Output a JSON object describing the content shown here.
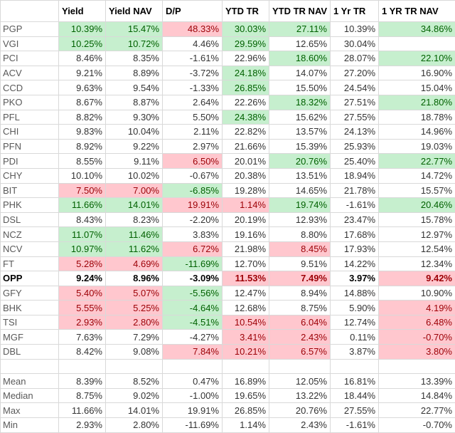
{
  "table": {
    "columns": [
      "Yield",
      "Yield NAV",
      "D/P",
      "YTD TR",
      "YTD TR NAV",
      "1 Yr TR",
      "1 YR TR NAV"
    ],
    "rows": [
      {
        "ticker": "PGP",
        "cells": [
          "10.39%",
          "15.47%",
          "48.33%",
          "30.03%",
          "27.11%",
          "10.39%",
          "34.86%"
        ],
        "fills": [
          "#c6efce",
          "#c6efce",
          "#ffc7ce",
          "#c6efce",
          "#c6efce",
          null,
          "#c6efce"
        ]
      },
      {
        "ticker": "VGI",
        "cells": [
          "10.25%",
          "10.72%",
          "4.46%",
          "29.59%",
          "12.65%",
          "30.04%",
          null
        ],
        "fills": [
          "#c6efce",
          "#c6efce",
          null,
          "#c6efce",
          null,
          null,
          null
        ]
      },
      {
        "ticker": "PCI",
        "cells": [
          "8.46%",
          "8.35%",
          "-1.61%",
          "22.96%",
          "18.60%",
          "28.07%",
          "22.10%"
        ],
        "fills": [
          null,
          null,
          null,
          null,
          "#c6efce",
          null,
          "#c6efce"
        ]
      },
      {
        "ticker": "ACV",
        "cells": [
          "9.21%",
          "8.89%",
          "-3.72%",
          "24.18%",
          "14.07%",
          "27.20%",
          "16.90%"
        ],
        "fills": [
          null,
          null,
          null,
          "#c6efce",
          null,
          null,
          null
        ]
      },
      {
        "ticker": "CCD",
        "cells": [
          "9.63%",
          "9.54%",
          "-1.33%",
          "26.85%",
          "15.50%",
          "24.54%",
          "15.04%"
        ],
        "fills": [
          null,
          null,
          null,
          "#c6efce",
          null,
          null,
          null
        ]
      },
      {
        "ticker": "PKO",
        "cells": [
          "8.67%",
          "8.87%",
          "2.64%",
          "22.26%",
          "18.32%",
          "27.51%",
          "21.80%"
        ],
        "fills": [
          null,
          null,
          null,
          null,
          "#c6efce",
          null,
          "#c6efce"
        ]
      },
      {
        "ticker": "PFL",
        "cells": [
          "8.82%",
          "9.30%",
          "5.50%",
          "24.38%",
          "15.62%",
          "27.55%",
          "18.78%"
        ],
        "fills": [
          null,
          null,
          null,
          "#c6efce",
          null,
          null,
          null
        ]
      },
      {
        "ticker": "CHI",
        "cells": [
          "9.83%",
          "10.04%",
          "2.11%",
          "22.82%",
          "13.57%",
          "24.13%",
          "14.96%"
        ],
        "fills": [
          null,
          null,
          null,
          null,
          null,
          null,
          null
        ]
      },
      {
        "ticker": "PFN",
        "cells": [
          "8.92%",
          "9.22%",
          "2.97%",
          "21.66%",
          "15.39%",
          "25.93%",
          "19.03%"
        ],
        "fills": [
          null,
          null,
          null,
          null,
          null,
          null,
          null
        ]
      },
      {
        "ticker": "PDI",
        "cells": [
          "8.55%",
          "9.11%",
          "6.50%",
          "20.01%",
          "20.76%",
          "25.40%",
          "22.77%"
        ],
        "fills": [
          null,
          null,
          "#ffc7ce",
          null,
          "#c6efce",
          null,
          "#c6efce"
        ]
      },
      {
        "ticker": "CHY",
        "cells": [
          "10.10%",
          "10.02%",
          "-0.67%",
          "20.38%",
          "13.51%",
          "18.94%",
          "14.72%"
        ],
        "fills": [
          null,
          null,
          null,
          null,
          null,
          null,
          null
        ]
      },
      {
        "ticker": "BIT",
        "cells": [
          "7.50%",
          "7.00%",
          "-6.85%",
          "19.28%",
          "14.65%",
          "21.78%",
          "15.57%"
        ],
        "fills": [
          "#ffc7ce",
          "#ffc7ce",
          "#c6efce",
          null,
          null,
          null,
          null
        ]
      },
      {
        "ticker": "PHK",
        "cells": [
          "11.66%",
          "14.01%",
          "19.91%",
          "1.14%",
          "19.74%",
          "-1.61%",
          "20.46%"
        ],
        "fills": [
          "#c6efce",
          "#c6efce",
          "#ffc7ce",
          "#ffc7ce",
          "#c6efce",
          null,
          "#c6efce"
        ]
      },
      {
        "ticker": "DSL",
        "cells": [
          "8.43%",
          "8.23%",
          "-2.20%",
          "20.19%",
          "12.93%",
          "23.47%",
          "15.78%"
        ],
        "fills": [
          null,
          null,
          null,
          null,
          null,
          null,
          null
        ]
      },
      {
        "ticker": "NCZ",
        "cells": [
          "11.07%",
          "11.46%",
          "3.83%",
          "19.16%",
          "8.80%",
          "17.68%",
          "12.97%"
        ],
        "fills": [
          "#c6efce",
          "#c6efce",
          null,
          null,
          null,
          null,
          null
        ]
      },
      {
        "ticker": "NCV",
        "cells": [
          "10.97%",
          "11.62%",
          "6.72%",
          "21.98%",
          "8.45%",
          "17.93%",
          "12.54%"
        ],
        "fills": [
          "#c6efce",
          "#c6efce",
          "#ffc7ce",
          null,
          "#ffc7ce",
          null,
          null
        ]
      },
      {
        "ticker": "FT",
        "cells": [
          "5.28%",
          "4.69%",
          "-11.69%",
          "12.70%",
          "9.51%",
          "14.22%",
          "12.34%"
        ],
        "fills": [
          "#ffc7ce",
          "#ffc7ce",
          "#c6efce",
          null,
          null,
          null,
          null
        ]
      },
      {
        "ticker": "OPP",
        "bold": true,
        "cells": [
          "9.24%",
          "8.96%",
          "-3.09%",
          "11.53%",
          "7.49%",
          "3.97%",
          "9.42%"
        ],
        "fills": [
          null,
          null,
          null,
          "#ffc7ce",
          "#ffc7ce",
          null,
          "#ffc7ce"
        ]
      },
      {
        "ticker": "GFY",
        "cells": [
          "5.40%",
          "5.07%",
          "-5.56%",
          "12.47%",
          "8.94%",
          "14.88%",
          "10.90%"
        ],
        "fills": [
          "#ffc7ce",
          "#ffc7ce",
          "#c6efce",
          null,
          null,
          null,
          null
        ]
      },
      {
        "ticker": "BHK",
        "cells": [
          "5.55%",
          "5.25%",
          "-4.64%",
          "12.68%",
          "8.75%",
          "5.90%",
          "4.19%"
        ],
        "fills": [
          "#ffc7ce",
          "#ffc7ce",
          "#c6efce",
          null,
          null,
          null,
          "#ffc7ce"
        ]
      },
      {
        "ticker": "TSI",
        "cells": [
          "2.93%",
          "2.80%",
          "-4.51%",
          "10.54%",
          "6.04%",
          "12.74%",
          "6.48%"
        ],
        "fills": [
          "#ffc7ce",
          "#ffc7ce",
          "#c6efce",
          "#ffc7ce",
          "#ffc7ce",
          null,
          "#ffc7ce"
        ]
      },
      {
        "ticker": "MGF",
        "cells": [
          "7.63%",
          "7.29%",
          "-4.27%",
          "3.41%",
          "2.43%",
          "0.11%",
          "-0.70%"
        ],
        "fills": [
          null,
          null,
          null,
          "#ffc7ce",
          "#ffc7ce",
          null,
          "#ffc7ce"
        ]
      },
      {
        "ticker": "DBL",
        "cells": [
          "8.42%",
          "9.08%",
          "7.84%",
          "10.21%",
          "6.57%",
          "3.87%",
          "3.80%"
        ],
        "fills": [
          null,
          null,
          "#ffc7ce",
          "#ffc7ce",
          "#ffc7ce",
          null,
          "#ffc7ce"
        ]
      }
    ],
    "summary": [
      {
        "label": "Mean",
        "cells": [
          "8.39%",
          "8.52%",
          "0.47%",
          "16.89%",
          "12.05%",
          "16.81%",
          "13.39%"
        ]
      },
      {
        "label": "Median",
        "cells": [
          "8.75%",
          "9.02%",
          "-1.00%",
          "19.65%",
          "13.22%",
          "18.44%",
          "14.84%"
        ]
      },
      {
        "label": "Max",
        "cells": [
          "11.66%",
          "14.01%",
          "19.91%",
          "26.85%",
          "20.76%",
          "27.55%",
          "22.77%"
        ]
      },
      {
        "label": "Min",
        "cells": [
          "2.93%",
          "2.80%",
          "-11.69%",
          "1.14%",
          "2.43%",
          "-1.61%",
          "-0.70%"
        ]
      }
    ]
  }
}
